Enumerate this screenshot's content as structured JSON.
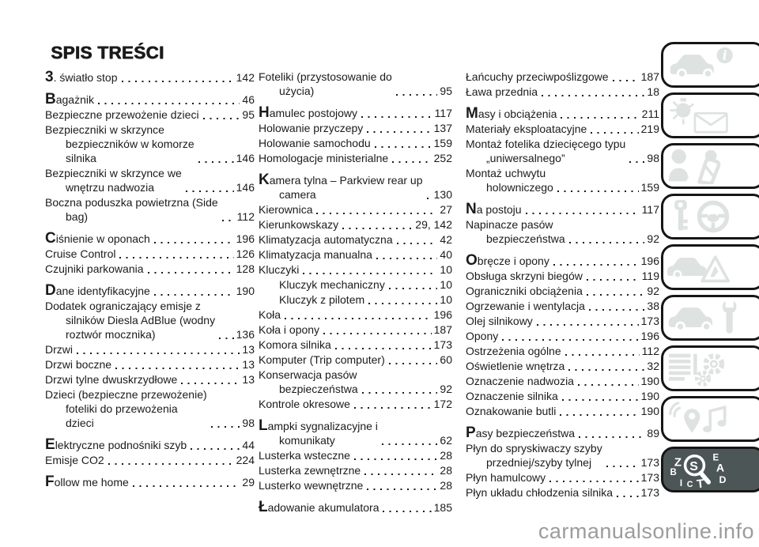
{
  "title": "SPIS TREŚCI",
  "watermark": "carmanualsonline.info",
  "colors": {
    "text": "#1b1b1b",
    "icon": "#dee3e2",
    "tile_border": "#161616",
    "active_tile_bg": "#4d5657",
    "watermark": "#9c9c9c"
  },
  "columns": [
    {
      "entries": [
        {
          "label": "3. światło stop",
          "page": "142",
          "cap": true
        },
        {
          "label": "Bagażnik",
          "page": "46",
          "cap": true,
          "gap": true
        },
        {
          "label": "Bezpieczne przewożenie dzieci",
          "page": "95"
        },
        {
          "label": "Bezpieczniki w skrzynce\nbezpieczników w komorze\nsilnika",
          "page": "146"
        },
        {
          "label": "Bezpieczniki w skrzynce we\nwnętrzu nadwozia",
          "page": "146"
        },
        {
          "label": "Boczna poduszka powietrzna (Side\nbag)",
          "page": "112"
        },
        {
          "label": "Ciśnienie w oponach",
          "page": "196",
          "cap": true,
          "gap": true
        },
        {
          "label": "Cruise Control",
          "page": "126"
        },
        {
          "label": "Czujniki parkowania",
          "page": "128"
        },
        {
          "label": "Dane identyfikacyjne",
          "page": "190",
          "cap": true,
          "gap": true
        },
        {
          "label": "Dodatek ograniczający emisje z\nsilników Diesla AdBlue (wodny\nroztwór mocznika)",
          "page": "136"
        },
        {
          "label": "Drzwi",
          "page": "13"
        },
        {
          "label": "Drzwi boczne",
          "page": "13"
        },
        {
          "label": "Drzwi tylne dwuskrzydłowe",
          "page": "13"
        },
        {
          "label": "Dzieci (bezpieczne przewożenie)\nfoteliki do przewożenia\ndzieci",
          "page": "98"
        },
        {
          "label": "Elektryczne podnośniki szyb",
          "page": "44",
          "cap": true,
          "gap": true
        },
        {
          "label": "Emisje CO2",
          "page": "224"
        },
        {
          "label": "Follow me home",
          "page": "29",
          "cap": true,
          "gap": true
        }
      ]
    },
    {
      "entries": [
        {
          "label": "Foteliki (przystosowanie do\nużycia)",
          "page": "95"
        },
        {
          "label": "Hamulec postojowy",
          "page": "117",
          "cap": true,
          "gap": true
        },
        {
          "label": "Holowanie przyczepy",
          "page": "137"
        },
        {
          "label": "Holowanie samochodu",
          "page": "159"
        },
        {
          "label": "Homologacje ministerialne",
          "page": "252"
        },
        {
          "label": "Kamera tylna – Parkview rear up\ncamera",
          "page": "130",
          "cap": true,
          "gap": true
        },
        {
          "label": "Kierownica",
          "page": "27"
        },
        {
          "label": "Kierunkowskazy",
          "page": "29, 142"
        },
        {
          "label": "Klimatyzacja automatyczna",
          "page": "42"
        },
        {
          "label": "Klimatyzacja manualna",
          "page": "40"
        },
        {
          "label": "Kluczyki",
          "page": "10"
        },
        {
          "label": "Kluczyk mechaniczny",
          "page": "10",
          "indent": true
        },
        {
          "label": "Kluczyk z pilotem",
          "page": "10",
          "indent": true
        },
        {
          "label": "Koła",
          "page": "196"
        },
        {
          "label": "Koła i opony",
          "page": "187"
        },
        {
          "label": "Komora silnika",
          "page": "173"
        },
        {
          "label": "Komputer (Trip computer)",
          "page": "60"
        },
        {
          "label": "Konserwacja pasów\nbezpieczeństwa",
          "page": "92"
        },
        {
          "label": "Kontrole okresowe",
          "page": "172"
        },
        {
          "label": "Lampki sygnalizacyjne i\nkomunikaty",
          "page": "62",
          "cap": true,
          "gap": true
        },
        {
          "label": "Lusterka wsteczne",
          "page": "28"
        },
        {
          "label": "Lusterka zewnętrzne",
          "page": "28"
        },
        {
          "label": "Lusterko wewnętrzne",
          "page": "28"
        },
        {
          "label": "Ładowanie akumulatora",
          "page": "185",
          "cap": true,
          "gap": true
        }
      ]
    },
    {
      "entries": [
        {
          "label": "Łańcuchy przeciwpoślizgowe",
          "page": "187"
        },
        {
          "label": "Ława przednia",
          "page": "18"
        },
        {
          "label": "Masy i obciążenia",
          "page": "211",
          "cap": true,
          "gap": true
        },
        {
          "label": "Materiały eksploatacyjne",
          "page": "219"
        },
        {
          "label": "Montaż fotelika dziecięcego typu\n„uniwersalnego”",
          "page": "98"
        },
        {
          "label": "Montaż uchwytu\nholowniczego",
          "page": "159"
        },
        {
          "label": "Na postoju",
          "page": "117",
          "cap": true,
          "gap": true
        },
        {
          "label": "Napinacze pasów\nbezpieczeństwa",
          "page": "92"
        },
        {
          "label": "Obręcze i opony",
          "page": "196",
          "cap": true,
          "gap": true
        },
        {
          "label": "Obsługa skrzyni biegów",
          "page": "119"
        },
        {
          "label": "Ograniczniki obciążenia",
          "page": "92"
        },
        {
          "label": "Ogrzewanie i wentylacja",
          "page": "38"
        },
        {
          "label": "Olej silnikowy",
          "page": "173"
        },
        {
          "label": "Opony",
          "page": "196"
        },
        {
          "label": "Ostrzeżenia ogólne",
          "page": "112"
        },
        {
          "label": "Oświetlenie wnętrza",
          "page": "32"
        },
        {
          "label": "Oznaczenie nadwozia",
          "page": "190"
        },
        {
          "label": "Oznaczenie silnika",
          "page": "190"
        },
        {
          "label": "Oznakowanie butli",
          "page": "190"
        },
        {
          "label": "Pasy bezpieczeństwa",
          "page": "89",
          "cap": true,
          "gap": true
        },
        {
          "label": "Płyn do spryskiwaczy szyby\nprzedniej/szyby tylnej",
          "page": "173"
        },
        {
          "label": "Płyn hamulcowy",
          "page": "173"
        },
        {
          "label": "Płyn układu chłodzenia silnika",
          "page": "173"
        }
      ]
    }
  ],
  "sidebar": {
    "tiles": [
      {
        "id": "vehicle-overview",
        "icon": "car-info-icon"
      },
      {
        "id": "warning-lights-messages",
        "icon": "bulb-envelope-icon"
      },
      {
        "id": "safety",
        "icon": "occupant-child-seat-icon"
      },
      {
        "id": "starting-driving",
        "icon": "key-steering-wheel-icon"
      },
      {
        "id": "emergency",
        "icon": "car-warning-triangle-icon"
      },
      {
        "id": "service-maintenance",
        "icon": "car-wrench-icon"
      },
      {
        "id": "technical-data",
        "icon": "list-gears-icon"
      },
      {
        "id": "multimedia",
        "icon": "antenna-note-pin-icon"
      },
      {
        "id": "alphabetical-index",
        "icon": "index-search-icon",
        "active": true,
        "letters": [
          "Z",
          "B",
          "E",
          "A",
          "D",
          "I",
          "C",
          "T",
          "S"
        ]
      }
    ]
  }
}
